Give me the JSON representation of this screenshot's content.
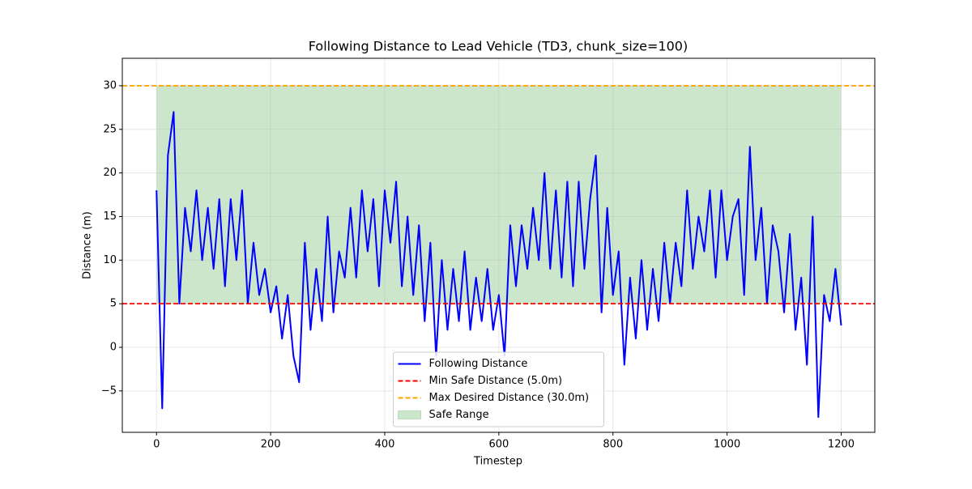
{
  "chart_data": {
    "type": "line",
    "title": "Following Distance to Lead Vehicle (TD3, chunk_size=100)",
    "x_label": "Timestep",
    "y_label": "Distance (m)",
    "xlim": [
      -59.95,
      1258.95
    ],
    "ylim": [
      -9.75,
      33.15
    ],
    "xticks": [
      0,
      200,
      400,
      600,
      800,
      1000,
      1200
    ],
    "yticks": [
      {
        "value": -5,
        "label": "−5"
      },
      0,
      5,
      10,
      15,
      20,
      25,
      30
    ],
    "grid": true,
    "legend": "lower center",
    "series": [
      {
        "name": "Following Distance",
        "color": "#0000ff",
        "x": [
          0,
          10,
          20,
          30,
          40,
          50,
          60,
          70,
          80,
          90,
          100,
          110,
          120,
          130,
          140,
          150,
          160,
          170,
          180,
          190,
          200,
          210,
          220,
          230,
          240,
          250,
          260,
          270,
          280,
          290,
          300,
          310,
          320,
          330,
          340,
          350,
          360,
          370,
          380,
          390,
          400,
          410,
          420,
          430,
          440,
          450,
          460,
          470,
          480,
          490,
          500,
          510,
          520,
          530,
          540,
          550,
          560,
          570,
          580,
          590,
          600,
          610,
          620,
          630,
          640,
          650,
          660,
          670,
          680,
          690,
          700,
          710,
          720,
          730,
          740,
          750,
          760,
          770,
          780,
          790,
          800,
          810,
          820,
          830,
          840,
          850,
          860,
          870,
          880,
          890,
          900,
          910,
          920,
          930,
          940,
          950,
          960,
          970,
          980,
          990,
          1000,
          1010,
          1020,
          1030,
          1040,
          1050,
          1060,
          1070,
          1080,
          1090,
          1100,
          1110,
          1120,
          1130,
          1140,
          1150,
          1160,
          1170,
          1180,
          1190,
          1200
        ],
        "values": [
          18,
          -7,
          22,
          27,
          5,
          16,
          11,
          18,
          10,
          16,
          9,
          17,
          7,
          17,
          10,
          18,
          5,
          12,
          6,
          9,
          4,
          7,
          1,
          6,
          -1,
          -4,
          12,
          2,
          9,
          3,
          15,
          4,
          11,
          8,
          16,
          8,
          18,
          11,
          17,
          7,
          18,
          12,
          19,
          7,
          15,
          6,
          14,
          3,
          12,
          -1,
          10,
          2,
          9,
          3,
          11,
          2,
          8,
          3,
          9,
          2,
          6,
          -1,
          14,
          7,
          14,
          9,
          16,
          10,
          20,
          9,
          18,
          8,
          19,
          7,
          19,
          9,
          17,
          22,
          4,
          16,
          6,
          11,
          -2,
          8,
          1,
          10,
          2,
          9,
          3,
          12,
          5,
          12,
          7,
          18,
          9,
          15,
          11,
          18,
          8,
          18,
          10,
          15,
          17,
          6,
          23,
          10,
          16,
          5,
          14,
          11,
          4,
          13,
          2,
          8,
          -2,
          15,
          -8,
          6,
          3,
          9,
          2.5
        ]
      }
    ],
    "hlines": [
      {
        "name": "Min Safe Distance (5.0m)",
        "value": 5,
        "color": "#ff0000"
      },
      {
        "name": "Max Desired Distance (30.0m)",
        "value": 30,
        "color": "#ffa500"
      }
    ],
    "band": {
      "name": "Safe Range",
      "range": [
        5,
        30
      ],
      "x_range": [
        0,
        1200
      ],
      "color": "#008000",
      "alpha": 0.2
    }
  }
}
